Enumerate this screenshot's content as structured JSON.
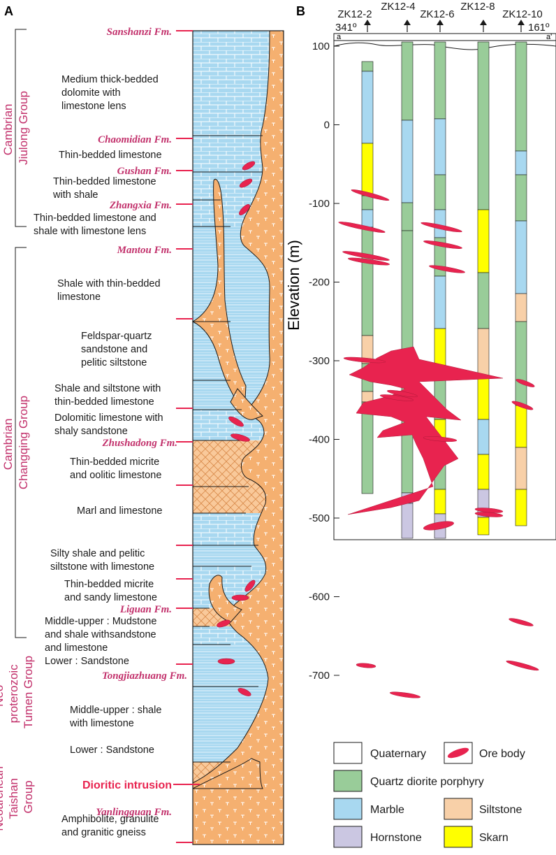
{
  "panel_a": {
    "label": "A",
    "formations": [
      "Sanshanzi Fm.",
      "Chaomidian Fm.",
      "Gushan Fm.",
      "Zhangxia Fm.",
      "Mantou Fm.",
      "Zhushadong Fm.",
      "Liguan Fm.",
      "Tongjiazhuang Fm.",
      "Dioritic intrusion",
      "Yanlingguan Fm."
    ],
    "descriptions": [
      [
        "Medium thick-bedded",
        "dolomite with",
        "limestone lens"
      ],
      [
        "Thin-bedded limestone"
      ],
      [
        "Thin-bedded limestone",
        "with shale"
      ],
      [
        "Thin-bedded limestone and",
        "shale with limestone lens"
      ],
      [
        "Shale with thin-bedded",
        "limestone"
      ],
      [
        "Feldspar-quartz",
        "sandstone and",
        "pelitic siltstone"
      ],
      [
        "Shale and siltstone with",
        "thin-bedded limestone"
      ],
      [
        "Dolomitic limestone with",
        "shaly sandstone"
      ],
      [
        "Thin-bedded micrite",
        "and oolitic limestone"
      ],
      [
        "Marl and limestone"
      ],
      [
        "Silty shale and pelitic",
        "siltstone with limestone"
      ],
      [
        "Thin-bedded micrite",
        "and sandy limestone"
      ],
      [
        "Middle-upper : Mudstone",
        "and shale withsandstone",
        "and limestone",
        "Lower : Sandstone"
      ],
      [
        "Middle-upper : shale",
        "with limestone",
        "Lower : Sandstone"
      ],
      [
        "Amphibolite, granulite",
        "and granitic gneiss"
      ]
    ],
    "groups": [
      [
        "Cambrian",
        "Jiulong Group"
      ],
      [
        "Cambrian",
        "Changqing Group"
      ],
      [
        "Neo-",
        "proterozoic",
        "Tumen Group"
      ],
      [
        "Neoarchean",
        "Taishan",
        "Group"
      ]
    ]
  },
  "panel_b": {
    "label": "B",
    "drill_holes": [
      "ZK12-2",
      "ZK12-4",
      "ZK12-6",
      "ZK12-8",
      "ZK12-10"
    ],
    "section_ends": [
      "a",
      "a'"
    ],
    "azimuths": [
      "341º",
      "161º"
    ],
    "y_axis": {
      "label": "Elevation (m)",
      "ticks": [
        100,
        0,
        -100,
        -200,
        -300,
        -400,
        -500,
        -600,
        -700
      ]
    },
    "legend": [
      "Quaternary",
      "Ore body",
      "Quartz diorite porphyry",
      "Marble",
      "Siltstone",
      "Hornstone",
      "Skarn"
    ]
  },
  "colors": {
    "accent": "#c2306b",
    "ore": "#e8234f",
    "porphyry": "#99cc99",
    "marble": "#a8d8f0",
    "siltstone": "#f8d0a8",
    "hornstone": "#cbc7e2",
    "skarn": "#ffff00",
    "intrusion": "#f5b070"
  }
}
